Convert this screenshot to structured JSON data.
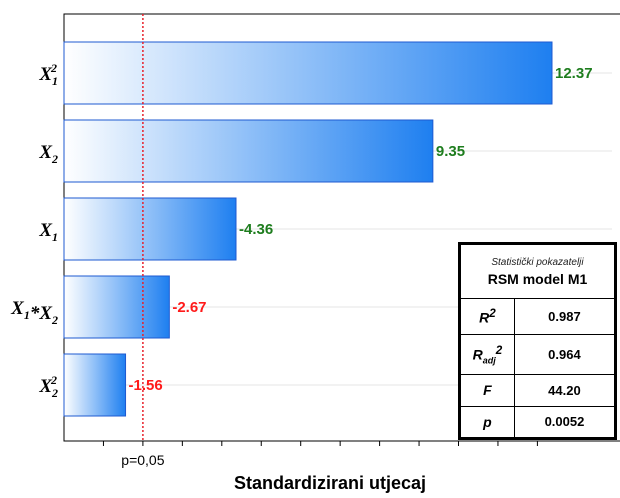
{
  "chart_data": {
    "type": "bar",
    "orientation": "horizontal",
    "categories": [
      {
        "base": "X",
        "sub": "1",
        "sup": "2",
        "tail": ""
      },
      {
        "base": "X",
        "sub": "2",
        "sup": "",
        "tail": ""
      },
      {
        "base": "X",
        "sub": "1",
        "sup": "",
        "tail": ""
      },
      {
        "base": "X",
        "sub": "1",
        "sup": "",
        "tail": "*X",
        "sub2": "2"
      },
      {
        "base": "X",
        "sub": "2",
        "sup": "2",
        "tail": ""
      }
    ],
    "values": [
      12.37,
      9.35,
      4.36,
      2.67,
      1.56
    ],
    "value_labels": [
      "12.37",
      "9.35",
      "-4.36",
      "-2.67",
      "-1.56"
    ],
    "label_colors": [
      "#1e7d1e",
      "#1e7d1e",
      "#1e7d1e",
      "#ff1a1a",
      "#ff1a1a"
    ],
    "reference_line": {
      "value": 2.0,
      "label": "p=0,05",
      "color": "#e8202a"
    },
    "xlabel": "Standardizirani utjecaj",
    "xlim": [
      0,
      13
    ],
    "bar_color": "#1e7ff0",
    "grid": true
  },
  "stats_table": {
    "caption": "Statistički pokazatelji",
    "model": "RSM model M1",
    "rows": [
      {
        "symbol": "R",
        "sup": "2",
        "value": "0.987"
      },
      {
        "symbol": "R",
        "sub": "adj",
        "sup": "2",
        "value": "0.964"
      },
      {
        "symbol": "F",
        "value": "44.20"
      },
      {
        "symbol": "p",
        "value": "0.0052"
      }
    ]
  }
}
